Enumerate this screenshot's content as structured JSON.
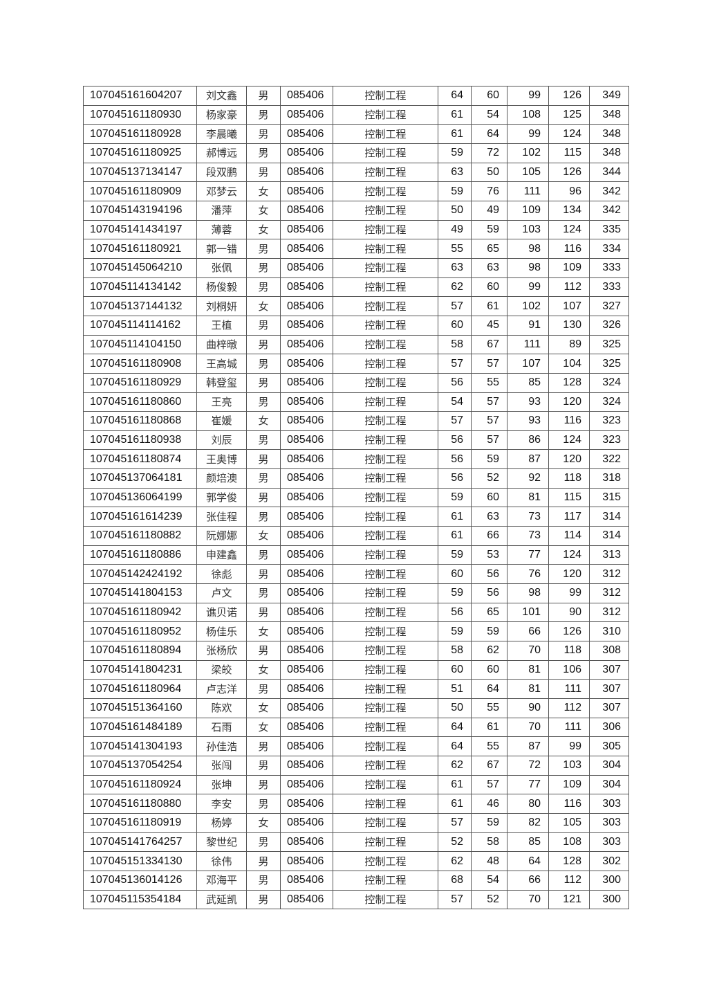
{
  "table": {
    "rows": [
      [
        "107045161604207",
        "刘文鑫",
        "男",
        "085406",
        "控制工程",
        "64",
        "60",
        "99",
        "126",
        "349"
      ],
      [
        "107045161180930",
        "杨家豪",
        "男",
        "085406",
        "控制工程",
        "61",
        "54",
        "108",
        "125",
        "348"
      ],
      [
        "107045161180928",
        "李晨曦",
        "男",
        "085406",
        "控制工程",
        "61",
        "64",
        "99",
        "124",
        "348"
      ],
      [
        "107045161180925",
        "郝博远",
        "男",
        "085406",
        "控制工程",
        "59",
        "72",
        "102",
        "115",
        "348"
      ],
      [
        "107045137134147",
        "段双鹏",
        "男",
        "085406",
        "控制工程",
        "63",
        "50",
        "105",
        "126",
        "344"
      ],
      [
        "107045161180909",
        "邓梦云",
        "女",
        "085406",
        "控制工程",
        "59",
        "76",
        "111",
        "96",
        "342"
      ],
      [
        "107045143194196",
        "潘萍",
        "女",
        "085406",
        "控制工程",
        "50",
        "49",
        "109",
        "134",
        "342"
      ],
      [
        "107045141434197",
        "薄蓉",
        "女",
        "085406",
        "控制工程",
        "49",
        "59",
        "103",
        "124",
        "335"
      ],
      [
        "107045161180921",
        "郭一错",
        "男",
        "085406",
        "控制工程",
        "55",
        "65",
        "98",
        "116",
        "334"
      ],
      [
        "107045145064210",
        "张佩",
        "男",
        "085406",
        "控制工程",
        "63",
        "63",
        "98",
        "109",
        "333"
      ],
      [
        "107045114134142",
        "杨俊毅",
        "男",
        "085406",
        "控制工程",
        "62",
        "60",
        "99",
        "112",
        "333"
      ],
      [
        "107045137144132",
        "刘桐妍",
        "女",
        "085406",
        "控制工程",
        "57",
        "61",
        "102",
        "107",
        "327"
      ],
      [
        "107045114114162",
        "王植",
        "男",
        "085406",
        "控制工程",
        "60",
        "45",
        "91",
        "130",
        "326"
      ],
      [
        "107045114104150",
        "曲梓暾",
        "男",
        "085406",
        "控制工程",
        "58",
        "67",
        "111",
        "89",
        "325"
      ],
      [
        "107045161180908",
        "王高城",
        "男",
        "085406",
        "控制工程",
        "57",
        "57",
        "107",
        "104",
        "325"
      ],
      [
        "107045161180929",
        "韩登玺",
        "男",
        "085406",
        "控制工程",
        "56",
        "55",
        "85",
        "128",
        "324"
      ],
      [
        "107045161180860",
        "王亮",
        "男",
        "085406",
        "控制工程",
        "54",
        "57",
        "93",
        "120",
        "324"
      ],
      [
        "107045161180868",
        "崔媛",
        "女",
        "085406",
        "控制工程",
        "57",
        "57",
        "93",
        "116",
        "323"
      ],
      [
        "107045161180938",
        "刘辰",
        "男",
        "085406",
        "控制工程",
        "56",
        "57",
        "86",
        "124",
        "323"
      ],
      [
        "107045161180874",
        "王奥博",
        "男",
        "085406",
        "控制工程",
        "56",
        "59",
        "87",
        "120",
        "322"
      ],
      [
        "107045137064181",
        "颜培澳",
        "男",
        "085406",
        "控制工程",
        "56",
        "52",
        "92",
        "118",
        "318"
      ],
      [
        "107045136064199",
        "郭学俊",
        "男",
        "085406",
        "控制工程",
        "59",
        "60",
        "81",
        "115",
        "315"
      ],
      [
        "107045161614239",
        "张佳程",
        "男",
        "085406",
        "控制工程",
        "61",
        "63",
        "73",
        "117",
        "314"
      ],
      [
        "107045161180882",
        "阮娜娜",
        "女",
        "085406",
        "控制工程",
        "61",
        "66",
        "73",
        "114",
        "314"
      ],
      [
        "107045161180886",
        "申建鑫",
        "男",
        "085406",
        "控制工程",
        "59",
        "53",
        "77",
        "124",
        "313"
      ],
      [
        "107045142424192",
        "徐彪",
        "男",
        "085406",
        "控制工程",
        "60",
        "56",
        "76",
        "120",
        "312"
      ],
      [
        "107045141804153",
        "卢文",
        "男",
        "085406",
        "控制工程",
        "59",
        "56",
        "98",
        "99",
        "312"
      ],
      [
        "107045161180942",
        "谯贝诺",
        "男",
        "085406",
        "控制工程",
        "56",
        "65",
        "101",
        "90",
        "312"
      ],
      [
        "107045161180952",
        "杨佳乐",
        "女",
        "085406",
        "控制工程",
        "59",
        "59",
        "66",
        "126",
        "310"
      ],
      [
        "107045161180894",
        "张杨欣",
        "男",
        "085406",
        "控制工程",
        "58",
        "62",
        "70",
        "118",
        "308"
      ],
      [
        "107045141804231",
        "梁皎",
        "女",
        "085406",
        "控制工程",
        "60",
        "60",
        "81",
        "106",
        "307"
      ],
      [
        "107045161180964",
        "卢志洋",
        "男",
        "085406",
        "控制工程",
        "51",
        "64",
        "81",
        "111",
        "307"
      ],
      [
        "107045151364160",
        "陈欢",
        "女",
        "085406",
        "控制工程",
        "50",
        "55",
        "90",
        "112",
        "307"
      ],
      [
        "107045161484189",
        "石雨",
        "女",
        "085406",
        "控制工程",
        "64",
        "61",
        "70",
        "111",
        "306"
      ],
      [
        "107045141304193",
        "孙佳浩",
        "男",
        "085406",
        "控制工程",
        "64",
        "55",
        "87",
        "99",
        "305"
      ],
      [
        "107045137054254",
        "张闯",
        "男",
        "085406",
        "控制工程",
        "62",
        "67",
        "72",
        "103",
        "304"
      ],
      [
        "107045161180924",
        "张坤",
        "男",
        "085406",
        "控制工程",
        "61",
        "57",
        "77",
        "109",
        "304"
      ],
      [
        "107045161180880",
        "李安",
        "男",
        "085406",
        "控制工程",
        "61",
        "46",
        "80",
        "116",
        "303"
      ],
      [
        "107045161180919",
        "杨婷",
        "女",
        "085406",
        "控制工程",
        "57",
        "59",
        "82",
        "105",
        "303"
      ],
      [
        "107045141764257",
        "黎世纪",
        "男",
        "085406",
        "控制工程",
        "52",
        "58",
        "85",
        "108",
        "303"
      ],
      [
        "107045151334130",
        "徐伟",
        "男",
        "085406",
        "控制工程",
        "62",
        "48",
        "64",
        "128",
        "302"
      ],
      [
        "107045136014126",
        "邓海平",
        "男",
        "085406",
        "控制工程",
        "68",
        "54",
        "66",
        "112",
        "300"
      ],
      [
        "107045115354184",
        "武延凯",
        "男",
        "085406",
        "控制工程",
        "57",
        "52",
        "70",
        "121",
        "300"
      ]
    ]
  }
}
